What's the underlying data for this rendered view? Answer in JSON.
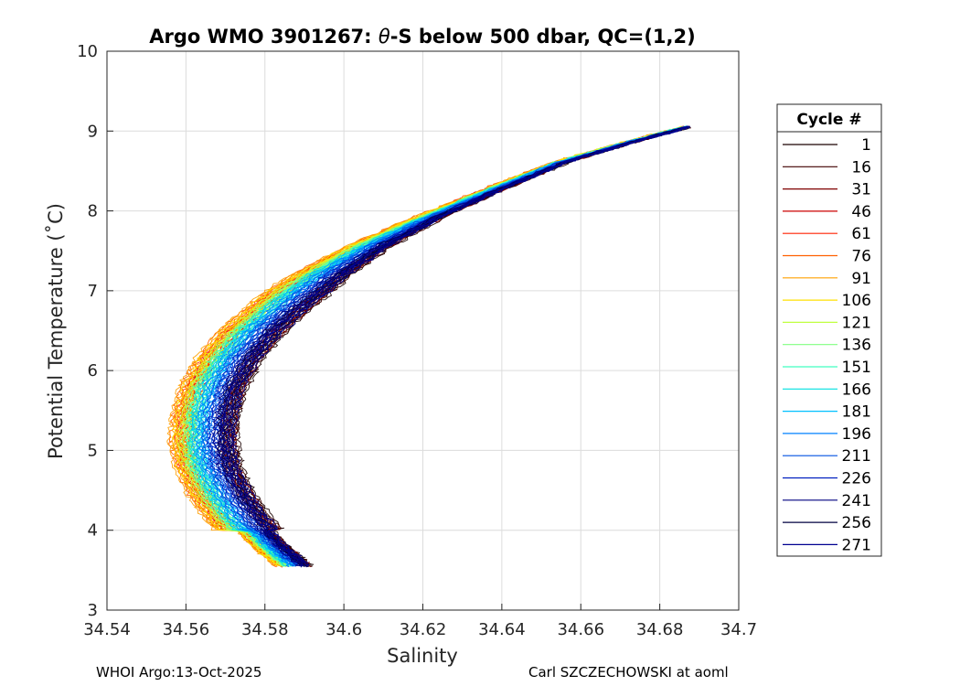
{
  "chart_data": {
    "type": "line",
    "title_parts": {
      "prefix": "Argo WMO 3901267: ",
      "symbol": "θ",
      "suffix": "-S below 500 dbar,  QC=(1,2)"
    },
    "xlabel": "Salinity",
    "ylabel": "Potential Temperature (˚C)",
    "xlim": [
      34.54,
      34.7
    ],
    "ylim": [
      3,
      10
    ],
    "x_ticks": [
      "34.54",
      "34.56",
      "34.58",
      "34.6",
      "34.62",
      "34.64",
      "34.66",
      "34.68",
      "34.7"
    ],
    "y_ticks": [
      "3",
      "4",
      "5",
      "6",
      "7",
      "8",
      "9",
      "10"
    ],
    "grid": true,
    "legend_title": "Cycle #",
    "legend_position": "right",
    "mean_curve": [
      {
        "s": 34.589,
        "t": 3.55
      },
      {
        "s": 34.583,
        "t": 3.8
      },
      {
        "s": 34.577,
        "t": 4.1
      },
      {
        "s": 34.572,
        "t": 4.45
      },
      {
        "s": 34.5685,
        "t": 4.8
      },
      {
        "s": 34.5675,
        "t": 5.1
      },
      {
        "s": 34.568,
        "t": 5.45
      },
      {
        "s": 34.57,
        "t": 5.8
      },
      {
        "s": 34.574,
        "t": 6.15
      },
      {
        "s": 34.58,
        "t": 6.5
      },
      {
        "s": 34.588,
        "t": 6.85
      },
      {
        "s": 34.597,
        "t": 7.2
      },
      {
        "s": 34.608,
        "t": 7.55
      },
      {
        "s": 34.622,
        "t": 7.9
      },
      {
        "s": 34.638,
        "t": 8.25
      },
      {
        "s": 34.655,
        "t": 8.6
      },
      {
        "s": 34.672,
        "t": 8.85
      },
      {
        "s": 34.687,
        "t": 9.05
      }
    ],
    "series": [
      {
        "name": "1",
        "color": "#1a0000",
        "offset": 0.004
      },
      {
        "name": "16",
        "color": "#400000",
        "offset": 0.0035
      },
      {
        "name": "31",
        "color": "#800000",
        "offset": 0.003
      },
      {
        "name": "46",
        "color": "#cc0000",
        "offset": -0.0075
      },
      {
        "name": "61",
        "color": "#ff2000",
        "offset": -0.0085
      },
      {
        "name": "76",
        "color": "#ff6000",
        "offset": -0.0095
      },
      {
        "name": "91",
        "color": "#ffa000",
        "offset": -0.01
      },
      {
        "name": "106",
        "color": "#ffe000",
        "offset": -0.0088
      },
      {
        "name": "121",
        "color": "#c0ff40",
        "offset": -0.0072
      },
      {
        "name": "136",
        "color": "#80ff80",
        "offset": -0.0062
      },
      {
        "name": "151",
        "color": "#40ffc0",
        "offset": -0.0055
      },
      {
        "name": "166",
        "color": "#00e0e0",
        "offset": -0.0048
      },
      {
        "name": "181",
        "color": "#00c0ff",
        "offset": -0.004
      },
      {
        "name": "196",
        "color": "#0080ff",
        "offset": -0.003
      },
      {
        "name": "211",
        "color": "#0050e0",
        "offset": -0.0015
      },
      {
        "name": "226",
        "color": "#0020c0",
        "offset": 0.0
      },
      {
        "name": "241",
        "color": "#000080",
        "offset": 0.0015
      },
      {
        "name": "256",
        "color": "#000040",
        "offset": 0.0025
      },
      {
        "name": "271",
        "color": "#000090",
        "offset": 0.003
      }
    ]
  },
  "footer": {
    "left": "WHOI Argo:13-Oct-2025",
    "right": "Carl SZCZECHOWSKI at aoml"
  }
}
